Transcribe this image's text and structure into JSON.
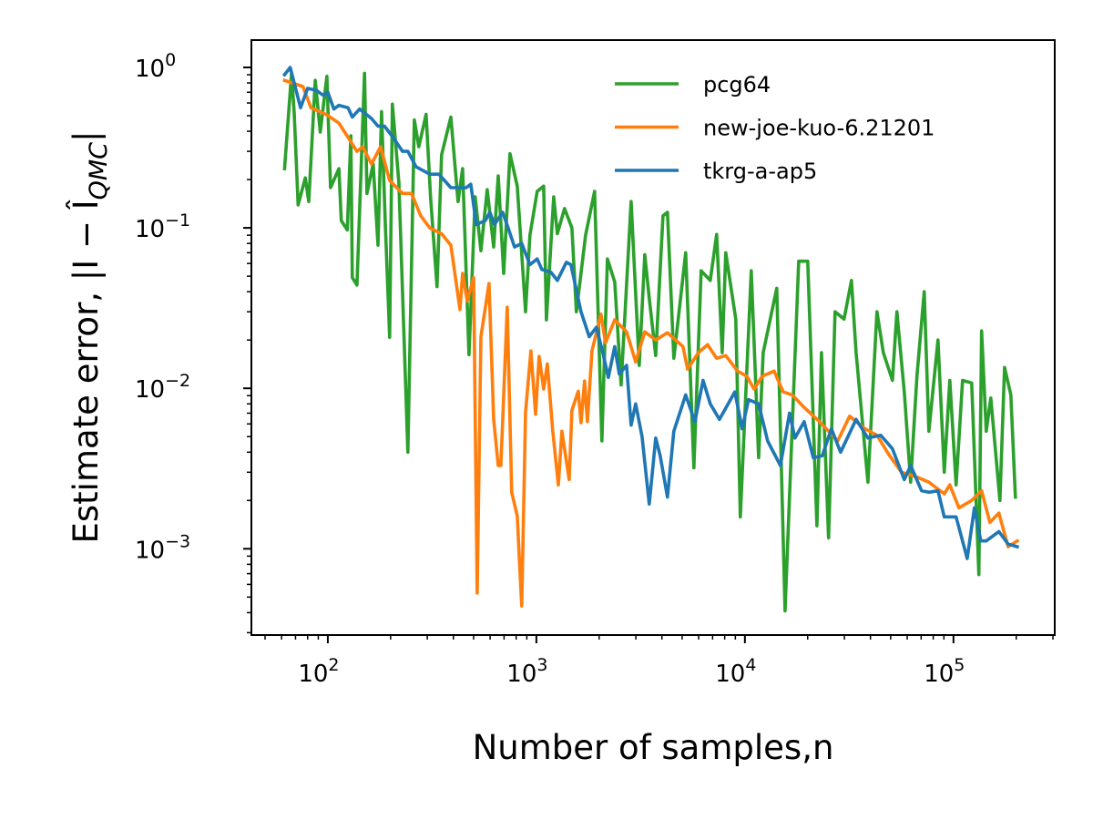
{
  "chart_data": {
    "type": "line",
    "title": "",
    "xlabel": "Number of samples,n",
    "ylabel": "Estimate error, |I − Î_QMC|",
    "xscale": "log",
    "yscale": "log",
    "xlim": [
      43,
      306000
    ],
    "ylim": [
      0.00029,
      1.48
    ],
    "grid": false,
    "legend_position": "top-right",
    "xticks": [
      100,
      1000,
      10000,
      100000
    ],
    "xtick_labels": [
      "10^2",
      "10^3",
      "10^4",
      "10^5"
    ],
    "yticks": [
      1,
      0.1,
      0.01,
      0.001
    ],
    "ytick_labels": [
      "10^0",
      "10^−1",
      "10^−2",
      "10^−3"
    ],
    "series": [
      {
        "name": "pcg64",
        "color": "#2ca02c",
        "x": [
          62,
          67,
          69,
          72,
          78,
          81,
          87,
          92,
          99,
          103,
          113,
          116,
          124,
          129,
          131,
          138,
          150,
          154,
          165,
          174,
          181,
          188,
          198,
          204,
          219,
          242,
          260,
          273,
          296,
          311,
          334,
          351,
          389,
          421,
          443,
          475,
          509,
          542,
          581,
          624,
          656,
          697,
          747,
          810,
          887,
          931,
          1009,
          1084,
          1117,
          1211,
          1260,
          1365,
          1480,
          1556,
          1722,
          1902,
          2061,
          2192,
          2375,
          2549,
          2846,
          3113,
          3311,
          3478,
          3733,
          4046,
          4254,
          4563,
          5200,
          5690,
          6166,
          6823,
          7322,
          7780,
          8091,
          9036,
          9506,
          10730,
          11640,
          12230,
          14210,
          15570,
          18120,
          20010,
          22140,
          23290,
          25200,
          27050,
          29900,
          32430,
          34120,
          38900,
          42950,
          46100,
          50960,
          53550,
          58080,
          62370,
          66830,
          72440,
          76210,
          84330,
          90360,
          96100,
          103000,
          110600,
          122300,
          132400,
          136500,
          143600,
          151000,
          167100,
          175800,
          188400,
          198200
        ],
        "y": [
          0.234,
          0.92,
          0.52,
          0.139,
          0.205,
          0.146,
          0.83,
          0.395,
          0.88,
          0.178,
          0.234,
          0.111,
          0.097,
          0.375,
          0.049,
          0.044,
          0.92,
          0.164,
          0.25,
          0.078,
          0.53,
          0.119,
          0.0208,
          0.59,
          0.192,
          0.004,
          0.47,
          0.32,
          0.51,
          0.156,
          0.043,
          0.285,
          0.49,
          0.146,
          0.234,
          0.0162,
          0.156,
          0.072,
          0.173,
          0.076,
          0.211,
          0.052,
          0.29,
          0.182,
          0.03,
          0.09,
          0.169,
          0.182,
          0.0267,
          0.156,
          0.092,
          0.132,
          0.1,
          0.03,
          0.09,
          0.169,
          0.0047,
          0.064,
          0.046,
          0.0105,
          0.146,
          0.0139,
          0.068,
          0.0365,
          0.016,
          0.119,
          0.125,
          0.0154,
          0.07,
          0.0032,
          0.054,
          0.047,
          0.091,
          0.0167,
          0.07,
          0.027,
          0.00158,
          0.054,
          0.0037,
          0.0167,
          0.042,
          0.00041,
          0.062,
          0.062,
          0.00139,
          0.0167,
          0.00117,
          0.03,
          0.027,
          0.047,
          0.0167,
          0.0026,
          0.03,
          0.0167,
          0.0112,
          0.03,
          0.0095,
          0.0026,
          0.0119,
          0.04,
          0.0054,
          0.02,
          0.003,
          0.0112,
          0.0025,
          0.0112,
          0.0108,
          0.00069,
          0.0228,
          0.0054,
          0.0087,
          0.002,
          0.0135,
          0.0091,
          0.0021
        ]
      },
      {
        "name": "new-joe-kuo-6.21201",
        "color": "#ff7f0e",
        "x": [
          62,
          76,
          83,
          98,
          113,
          138,
          147,
          162,
          179,
          198,
          228,
          252,
          279,
          308,
          351,
          389,
          430,
          443,
          466,
          500,
          520,
          542,
          593,
          624,
          656,
          676,
          725,
          762,
          810,
          851,
          887,
          942,
          991,
          1031,
          1084,
          1128,
          1199,
          1274,
          1325,
          1436,
          1480,
          1588,
          1637,
          1703,
          1757,
          1847,
          2041,
          2146,
          2375,
          2706,
          2994,
          3311,
          3733,
          4254,
          5047,
          5309,
          5990,
          6617,
          7322,
          8091,
          9225,
          10210,
          11060,
          12110,
          13800,
          15250,
          16870,
          19230,
          22800,
          25200,
          27860,
          31770,
          37670,
          42950,
          49430,
          56360,
          66830,
          76210,
          90360,
          96100,
          106200,
          122300,
          136500,
          149500,
          165200,
          182800,
          202300
        ],
        "y": [
          0.83,
          0.76,
          0.56,
          0.51,
          0.45,
          0.3,
          0.32,
          0.25,
          0.32,
          0.197,
          0.164,
          0.164,
          0.119,
          0.1,
          0.092,
          0.078,
          0.031,
          0.052,
          0.035,
          0.049,
          0.00053,
          0.021,
          0.045,
          0.0064,
          0.0033,
          0.0033,
          0.032,
          0.00225,
          0.0016,
          0.00044,
          0.0071,
          0.0171,
          0.0069,
          0.0158,
          0.0099,
          0.0142,
          0.0054,
          0.0025,
          0.0054,
          0.0027,
          0.0073,
          0.0096,
          0.0061,
          0.0111,
          0.0062,
          0.0171,
          0.029,
          0.0192,
          0.0267,
          0.0225,
          0.0146,
          0.0225,
          0.02,
          0.0222,
          0.0182,
          0.0132,
          0.0167,
          0.0187,
          0.0154,
          0.016,
          0.0128,
          0.0119,
          0.0099,
          0.0119,
          0.0128,
          0.0095,
          0.0091,
          0.0076,
          0.0062,
          0.0054,
          0.0047,
          0.0067,
          0.0056,
          0.0051,
          0.0038,
          0.003,
          0.0028,
          0.0026,
          0.0022,
          0.0025,
          0.0018,
          0.002,
          0.0023,
          0.00146,
          0.00167,
          0.00103,
          0.00112
        ]
      },
      {
        "name": "tkrg-a-ap5",
        "color": "#1f77b4",
        "x": [
          62,
          66,
          74,
          80,
          88,
          95,
          100,
          107,
          113,
          125,
          131,
          142,
          162,
          174,
          187,
          206,
          228,
          242,
          265,
          308,
          341,
          389,
          461,
          485,
          515,
          569,
          598,
          630,
          689,
          732,
          786,
          851,
          931,
          1009,
          1062,
          1174,
          1260,
          1393,
          1465,
          1637,
          1792,
          1941,
          2083,
          2213,
          2375,
          2497,
          2706,
          2846,
          2994,
          3212,
          3478,
          3733,
          3925,
          4254,
          4563,
          5200,
          5754,
          6300,
          6823,
          7551,
          8954,
          9704,
          10410,
          11640,
          12860,
          14800,
          16370,
          17380,
          19230,
          21270,
          23500,
          26000,
          28770,
          34120,
          38900,
          44770,
          50960,
          58080,
          62370,
          70330,
          76210,
          84330,
          90360,
          103000,
          116400,
          126000,
          135200,
          143600,
          165200,
          182800,
          202300
        ],
        "y": [
          0.9,
          1.0,
          0.56,
          0.74,
          0.72,
          0.67,
          0.7,
          0.55,
          0.58,
          0.56,
          0.49,
          0.55,
          0.48,
          0.43,
          0.43,
          0.365,
          0.3,
          0.3,
          0.24,
          0.216,
          0.216,
          0.178,
          0.178,
          0.187,
          0.105,
          0.111,
          0.125,
          0.105,
          0.125,
          0.1,
          0.076,
          0.08,
          0.059,
          0.064,
          0.055,
          0.053,
          0.047,
          0.061,
          0.059,
          0.03,
          0.021,
          0.024,
          0.0167,
          0.0117,
          0.0182,
          0.0123,
          0.0139,
          0.0059,
          0.008,
          0.005,
          0.0019,
          0.0049,
          0.0038,
          0.0021,
          0.0054,
          0.0091,
          0.0062,
          0.0112,
          0.008,
          0.0064,
          0.0095,
          0.0056,
          0.0085,
          0.008,
          0.0047,
          0.0033,
          0.007,
          0.0049,
          0.0062,
          0.0037,
          0.0038,
          0.0056,
          0.004,
          0.0064,
          0.0049,
          0.0051,
          0.0042,
          0.0027,
          0.0033,
          0.0023,
          0.00225,
          0.0023,
          0.00158,
          0.00158,
          0.00087,
          0.0018,
          0.00112,
          0.00112,
          0.00128,
          0.00107,
          0.00103
        ]
      }
    ]
  }
}
